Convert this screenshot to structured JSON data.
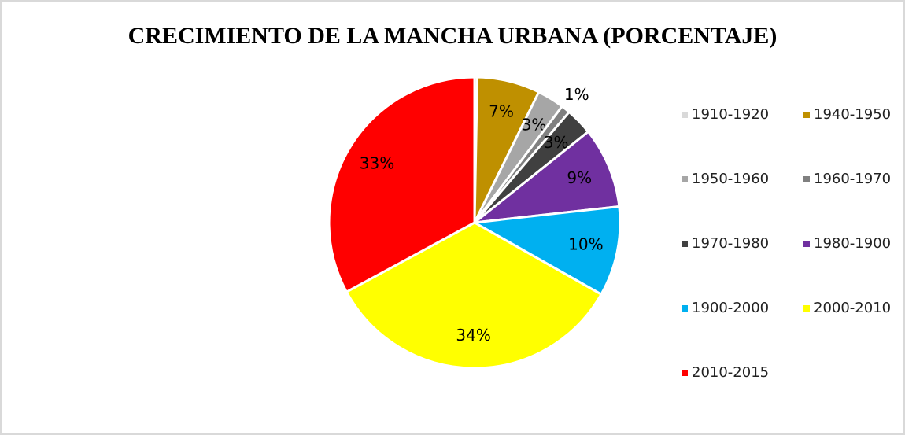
{
  "chart_data": {
    "type": "pie",
    "title": "CRECIMIENTO DE LA MANCHA URBANA (PORCENTAJE)",
    "categories": [
      "1910-1920",
      "1940-1950",
      "1950-1960",
      "1960-1970",
      "1970-1980",
      "1980-1900",
      "1900-2000",
      "2000-2010",
      "2010-2015"
    ],
    "values": [
      0.3,
      7,
      3,
      1,
      3,
      9,
      10,
      34,
      33
    ],
    "value_labels": [
      null,
      "7%",
      "3%",
      "1%",
      "3%",
      "9%",
      "10%",
      "34%",
      "33%"
    ],
    "colors": [
      "#d9d9d9",
      "#bf9000",
      "#a6a6a6",
      "#808080",
      "#404040",
      "#7030a0",
      "#00b0f0",
      "#ffff00",
      "#ff0000"
    ],
    "legend": "right"
  }
}
